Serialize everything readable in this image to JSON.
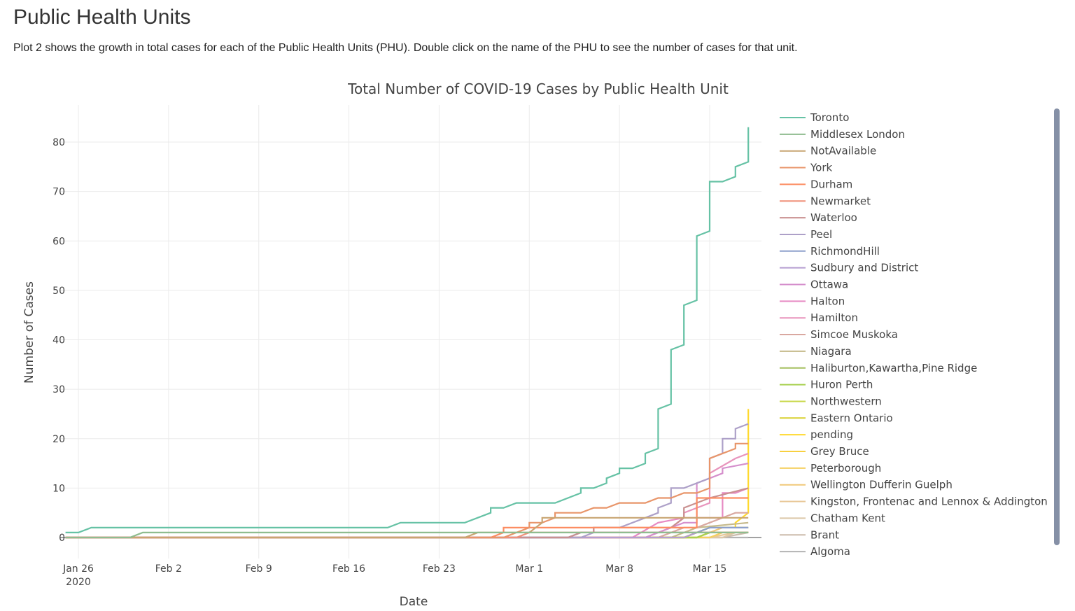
{
  "page": {
    "title": "Public Health Units",
    "description": "Plot 2 shows the growth in total cases for each of the Public Health Units (PHU). Double click on the name of the PHU to see the number of cases for that unit."
  },
  "chart_data": {
    "type": "line",
    "line_shape": "stepped",
    "title": "Total Number of COVID-19 Cases by Public Health Unit",
    "xlabel": "Date",
    "ylabel": "Number of Cases",
    "x_start": "2020-01-25",
    "x_end": "2020-03-20",
    "xlim_days": [
      -0.3,
      55
    ],
    "ylim": [
      -5,
      88
    ],
    "grid": true,
    "legend_placement": "right",
    "x_ticks": [
      {
        "day": 1,
        "label": "Jan 26",
        "sub": "2020"
      },
      {
        "day": 8,
        "label": "Feb 2",
        "sub": ""
      },
      {
        "day": 15,
        "label": "Feb 9",
        "sub": ""
      },
      {
        "day": 22,
        "label": "Feb 16",
        "sub": ""
      },
      {
        "day": 29,
        "label": "Feb 23",
        "sub": ""
      },
      {
        "day": 36,
        "label": "Mar 1",
        "sub": ""
      },
      {
        "day": 43,
        "label": "Mar 8",
        "sub": ""
      },
      {
        "day": 50,
        "label": "Mar 15",
        "sub": ""
      }
    ],
    "y_ticks": [
      0,
      10,
      20,
      30,
      40,
      50,
      60,
      70,
      80
    ],
    "series": [
      {
        "name": "Toronto",
        "color": "#66c2a5",
        "points": [
          [
            0,
            1
          ],
          [
            1,
            1
          ],
          [
            2,
            2
          ],
          [
            25,
            2
          ],
          [
            26,
            3
          ],
          [
            31,
            3
          ],
          [
            33,
            5
          ],
          [
            33,
            6
          ],
          [
            34,
            6
          ],
          [
            35,
            7
          ],
          [
            38,
            7
          ],
          [
            40,
            9
          ],
          [
            40,
            10
          ],
          [
            41,
            10
          ],
          [
            42,
            11
          ],
          [
            42,
            12
          ],
          [
            43,
            13
          ],
          [
            43,
            14
          ],
          [
            44,
            14
          ],
          [
            45,
            15
          ],
          [
            45,
            17
          ],
          [
            46,
            18
          ],
          [
            46,
            26
          ],
          [
            47,
            27
          ],
          [
            47,
            38
          ],
          [
            48,
            39
          ],
          [
            48,
            47
          ],
          [
            49,
            48
          ],
          [
            49,
            61
          ],
          [
            50,
            62
          ],
          [
            50,
            72
          ],
          [
            51,
            72
          ],
          [
            52,
            73
          ],
          [
            52,
            75
          ],
          [
            53,
            76
          ],
          [
            53,
            83
          ]
        ]
      },
      {
        "name": "Middlesex London",
        "color": "#8fbc8f",
        "points": [
          [
            0,
            0
          ],
          [
            5,
            0
          ],
          [
            6,
            1
          ],
          [
            53,
            1
          ]
        ]
      },
      {
        "name": "NotAvailable",
        "color": "#c8a572",
        "points": [
          [
            0,
            0
          ],
          [
            31,
            0
          ],
          [
            32,
            1
          ],
          [
            36,
            1
          ],
          [
            37,
            3
          ],
          [
            37,
            4
          ],
          [
            53,
            4
          ]
        ]
      },
      {
        "name": "York",
        "color": "#e8956a",
        "points": [
          [
            0,
            0
          ],
          [
            34,
            0
          ],
          [
            35,
            1
          ],
          [
            36,
            2
          ],
          [
            36,
            3
          ],
          [
            37,
            3
          ],
          [
            38,
            4
          ],
          [
            38,
            5
          ],
          [
            40,
            5
          ],
          [
            41,
            6
          ],
          [
            42,
            6
          ],
          [
            43,
            7
          ],
          [
            45,
            7
          ],
          [
            46,
            8
          ],
          [
            47,
            8
          ],
          [
            48,
            9
          ],
          [
            49,
            9
          ],
          [
            50,
            10
          ],
          [
            50,
            16
          ],
          [
            52,
            18
          ],
          [
            52,
            19
          ],
          [
            53,
            19
          ]
        ]
      },
      {
        "name": "Durham",
        "color": "#fc8d62",
        "points": [
          [
            0,
            0
          ],
          [
            33,
            0
          ],
          [
            34,
            1
          ],
          [
            34,
            2
          ],
          [
            49,
            2
          ],
          [
            49,
            8
          ],
          [
            53,
            8
          ]
        ]
      },
      {
        "name": "Newmarket",
        "color": "#f0907a",
        "points": [
          [
            0,
            0
          ],
          [
            35,
            0
          ],
          [
            36,
            1
          ],
          [
            53,
            1
          ]
        ]
      },
      {
        "name": "Waterloo",
        "color": "#c99090",
        "points": [
          [
            0,
            0
          ],
          [
            39,
            0
          ],
          [
            40,
            1
          ],
          [
            41,
            1
          ],
          [
            41,
            2
          ],
          [
            47,
            2
          ],
          [
            48,
            4
          ],
          [
            48,
            6
          ],
          [
            50,
            8
          ],
          [
            53,
            10
          ]
        ]
      },
      {
        "name": "Peel",
        "color": "#ada0c8",
        "points": [
          [
            0,
            0
          ],
          [
            40,
            0
          ],
          [
            41,
            1
          ],
          [
            41,
            2
          ],
          [
            43,
            2
          ],
          [
            45,
            4
          ],
          [
            46,
            5
          ],
          [
            46,
            6
          ],
          [
            47,
            7
          ],
          [
            47,
            10
          ],
          [
            48,
            10
          ],
          [
            50,
            12
          ],
          [
            50,
            16
          ],
          [
            51,
            17
          ],
          [
            51,
            20
          ],
          [
            52,
            20
          ],
          [
            52,
            22
          ],
          [
            53,
            23
          ]
        ]
      },
      {
        "name": "RichmondHill",
        "color": "#8da0cb",
        "points": [
          [
            0,
            0
          ],
          [
            39,
            0
          ],
          [
            40,
            1
          ],
          [
            49,
            1
          ],
          [
            50,
            2
          ],
          [
            53,
            2
          ]
        ]
      },
      {
        "name": "Sudbury and District",
        "color": "#b59dd0",
        "points": [
          [
            0,
            0
          ],
          [
            48,
            0
          ],
          [
            49,
            1
          ],
          [
            53,
            1
          ]
        ]
      },
      {
        "name": "Ottawa",
        "color": "#d58fcc",
        "points": [
          [
            0,
            0
          ],
          [
            45,
            0
          ],
          [
            46,
            1
          ],
          [
            48,
            3
          ],
          [
            49,
            3
          ],
          [
            49,
            11
          ],
          [
            50,
            12
          ],
          [
            51,
            13
          ],
          [
            51,
            14
          ],
          [
            53,
            15
          ]
        ]
      },
      {
        "name": "Halton",
        "color": "#e78ac3",
        "points": [
          [
            0,
            0
          ],
          [
            44,
            0
          ],
          [
            46,
            3
          ],
          [
            48,
            4
          ],
          [
            50,
            4
          ],
          [
            51,
            4
          ],
          [
            51,
            9
          ],
          [
            52,
            9
          ],
          [
            53,
            10
          ]
        ]
      },
      {
        "name": "Hamilton",
        "color": "#e894bc",
        "points": [
          [
            0,
            0
          ],
          [
            45,
            0
          ],
          [
            47,
            2
          ],
          [
            48,
            4
          ],
          [
            48,
            5
          ],
          [
            50,
            7
          ],
          [
            50,
            13
          ],
          [
            52,
            16
          ],
          [
            53,
            17
          ]
        ]
      },
      {
        "name": "Simcoe Muskoka",
        "color": "#d9a8a0",
        "points": [
          [
            0,
            0
          ],
          [
            46,
            0
          ],
          [
            48,
            2
          ],
          [
            49,
            2
          ],
          [
            50,
            3
          ],
          [
            52,
            5
          ],
          [
            53,
            5
          ]
        ]
      },
      {
        "name": "Niagara",
        "color": "#c5b98a",
        "points": [
          [
            0,
            0
          ],
          [
            47,
            0
          ],
          [
            49,
            2
          ],
          [
            53,
            3
          ]
        ]
      },
      {
        "name": "Haliburton,Kawartha,Pine Ridge",
        "color": "#a6c060",
        "points": [
          [
            0,
            0
          ],
          [
            48,
            0
          ],
          [
            50,
            2
          ],
          [
            53,
            2
          ]
        ]
      },
      {
        "name": "Huron Perth",
        "color": "#a8d050",
        "points": [
          [
            0,
            0
          ],
          [
            49,
            0
          ],
          [
            50,
            1
          ],
          [
            53,
            1
          ]
        ]
      },
      {
        "name": "Northwestern",
        "color": "#c8d84a",
        "points": [
          [
            0,
            0
          ],
          [
            49,
            0
          ],
          [
            50,
            1
          ],
          [
            53,
            1
          ]
        ]
      },
      {
        "name": "Eastern Ontario",
        "color": "#d8d030",
        "points": [
          [
            0,
            0
          ],
          [
            48,
            0
          ],
          [
            49,
            1
          ],
          [
            53,
            1
          ]
        ]
      },
      {
        "name": "pending",
        "color": "#ffd92f",
        "points": [
          [
            0,
            0
          ],
          [
            48,
            0
          ],
          [
            50,
            2
          ],
          [
            52,
            2
          ],
          [
            52,
            3
          ],
          [
            53,
            5
          ],
          [
            53,
            26
          ]
        ]
      },
      {
        "name": "Grey Bruce",
        "color": "#f8d040",
        "points": [
          [
            0,
            0
          ],
          [
            49,
            0
          ],
          [
            50,
            1
          ],
          [
            53,
            1
          ]
        ]
      },
      {
        "name": "Peterborough",
        "color": "#f5d060",
        "points": [
          [
            0,
            0
          ],
          [
            50,
            0
          ],
          [
            51,
            1
          ],
          [
            53,
            1
          ]
        ]
      },
      {
        "name": "Wellington Dufferin Guelph",
        "color": "#f0c878",
        "points": [
          [
            0,
            0
          ],
          [
            49,
            0
          ],
          [
            51,
            2
          ],
          [
            53,
            2
          ]
        ]
      },
      {
        "name": "Kingston, Frontenac and Lennox & Addington",
        "color": "#e8c898",
        "points": [
          [
            0,
            0
          ],
          [
            50,
            0
          ],
          [
            52,
            1
          ],
          [
            53,
            1
          ]
        ]
      },
      {
        "name": "Chatham Kent",
        "color": "#dcc8a8",
        "points": [
          [
            0,
            0
          ],
          [
            51,
            0
          ],
          [
            52,
            1
          ],
          [
            53,
            1
          ]
        ]
      },
      {
        "name": "Brant",
        "color": "#ccbcac",
        "points": [
          [
            0,
            0
          ],
          [
            51,
            0
          ],
          [
            53,
            1
          ]
        ]
      },
      {
        "name": "Algoma",
        "color": "#b3b3b3",
        "points": [
          [
            0,
            0
          ],
          [
            53,
            0
          ]
        ]
      }
    ]
  }
}
